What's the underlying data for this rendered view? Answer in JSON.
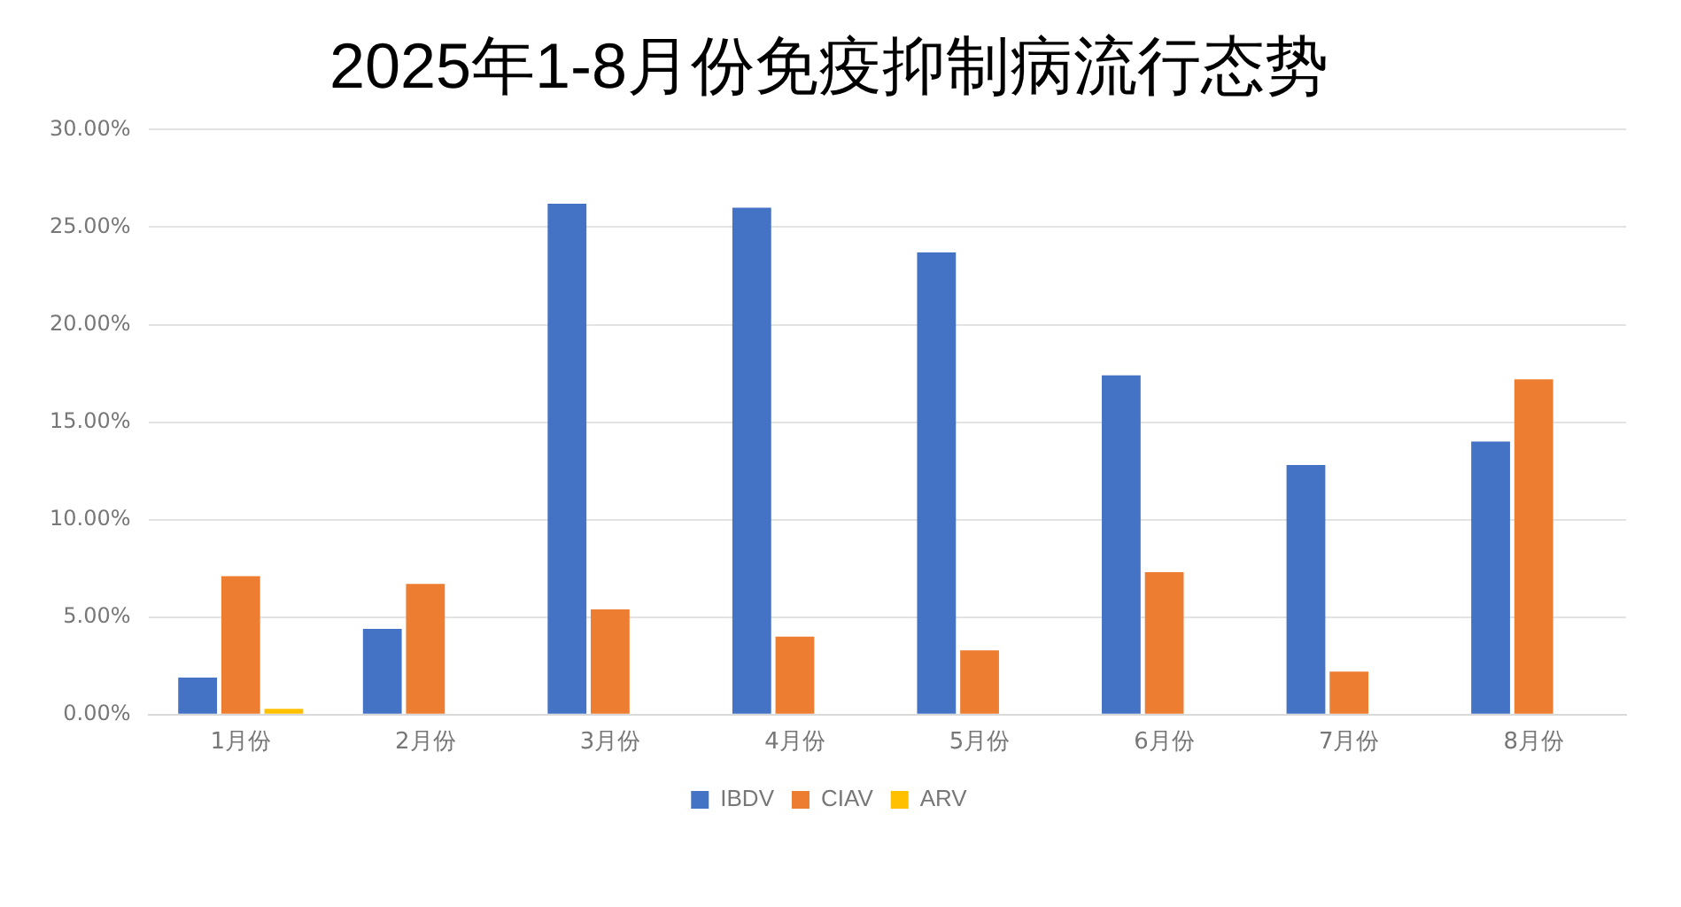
{
  "chart_data": {
    "type": "bar",
    "title": "2025年1-8月份免疫抑制病流行态势",
    "categories": [
      "1月份",
      "2月份",
      "3月份",
      "4月份",
      "5月份",
      "6月份",
      "7月份",
      "8月份"
    ],
    "series": [
      {
        "name": "IBDV",
        "color": "#4472c4",
        "values": [
          1.9,
          4.4,
          26.2,
          26.0,
          23.7,
          17.4,
          12.8,
          14.0
        ]
      },
      {
        "name": "CIAV",
        "color": "#ed7d31",
        "values": [
          7.1,
          6.7,
          5.4,
          4.0,
          3.3,
          7.3,
          2.2,
          17.2
        ]
      },
      {
        "name": "ARV",
        "color": "#ffc000",
        "values": [
          0.3,
          0,
          0,
          0,
          0,
          0,
          0,
          0
        ]
      }
    ],
    "ylim": [
      0,
      30
    ],
    "yticks": [
      {
        "value": 0,
        "label": "0.00%"
      },
      {
        "value": 5,
        "label": "5.00%"
      },
      {
        "value": 10,
        "label": "10.00%"
      },
      {
        "value": 15,
        "label": "15.00%"
      },
      {
        "value": 20,
        "label": "20.00%"
      },
      {
        "value": 25,
        "label": "25.00%"
      },
      {
        "value": 30,
        "label": "30.00%"
      }
    ],
    "grid": "y",
    "legend": "bottom"
  }
}
